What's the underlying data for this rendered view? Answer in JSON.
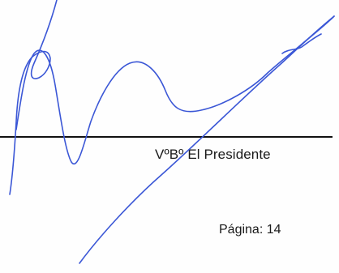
{
  "document": {
    "signer_title": "VºBº El Presidente",
    "page_label": "Página: 14"
  },
  "signature": {
    "icon": "handwritten-signature",
    "ink_color": "#3b57d6"
  }
}
